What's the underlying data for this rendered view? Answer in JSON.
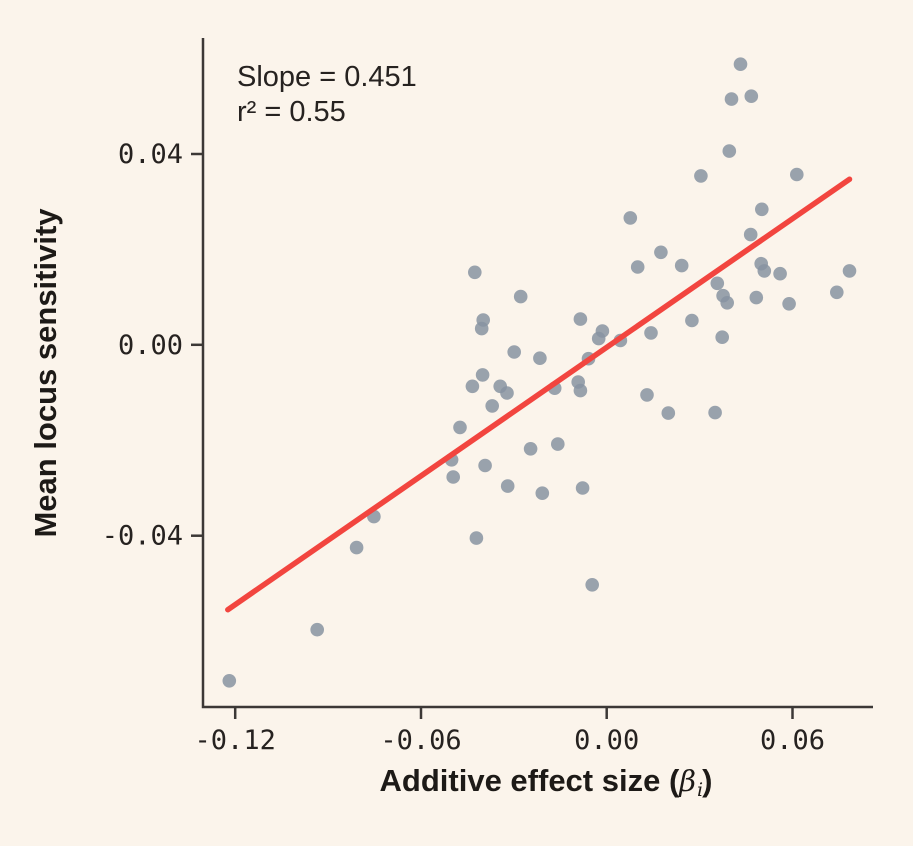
{
  "figure": {
    "annotation": {
      "line1": "Slope = 0.451",
      "line2": "r² = 0.55"
    },
    "xlabel": {
      "prefix": "Additive effect size (",
      "symbol": "β",
      "subscript": "i",
      "suffix": ")"
    },
    "ylabel": "Mean locus sensitivity"
  },
  "chart_data": {
    "type": "scatter",
    "title": "",
    "xlabel": "Additive effect size (β_i)",
    "ylabel": "Mean locus sensitivity",
    "annotations": [
      "Slope = 0.451",
      "r² = 0.55"
    ],
    "grid": false,
    "legend": false,
    "xlim": [
      -0.1304,
      0.086
    ],
    "ylim": [
      -0.0759,
      0.0643
    ],
    "x_ticks": {
      "values": [
        -0.12,
        -0.06,
        0.0,
        0.06
      ],
      "labels": [
        "-0.12",
        "-0.06",
        "0.00",
        "0.06"
      ]
    },
    "y_ticks": {
      "values": [
        0.04,
        0.0,
        -0.04
      ],
      "labels": [
        "0.04",
        "0.00",
        "-0.04"
      ]
    },
    "fit_line": {
      "slope": 0.451,
      "r_squared": 0.55,
      "x_start": -0.1224,
      "y_start": -0.0555,
      "x_end": 0.0784,
      "y_end": 0.0347
    },
    "points": [
      [
        0.0076,
        0.0266
      ],
      [
        0.0175,
        0.0194
      ],
      [
        0.0432,
        0.0588
      ],
      [
        0.0403,
        0.0515
      ],
      [
        0.0467,
        0.0521
      ],
      [
        0.0396,
        0.0406
      ],
      [
        0.0304,
        0.0354
      ],
      [
        0.0614,
        0.0357
      ],
      [
        0.0501,
        0.0284
      ],
      [
        0.0465,
        0.0231
      ],
      [
        0.0242,
        0.0166
      ],
      [
        0.0499,
        0.017
      ],
      [
        0.0509,
        0.0155
      ],
      [
        -0.0426,
        0.0152
      ],
      [
        -0.0278,
        0.0101
      ],
      [
        0.01,
        0.0163
      ],
      [
        -0.0399,
        0.0052
      ],
      [
        -0.0404,
        0.0034
      ],
      [
        -0.0085,
        0.0054
      ],
      [
        -0.0014,
        0.0029
      ],
      [
        -0.0026,
        0.0013
      ],
      [
        0.0044,
        0.0009
      ],
      [
        0.0143,
        0.0025
      ],
      [
        -0.0299,
        -0.0015
      ],
      [
        -0.0216,
        -0.0028
      ],
      [
        -0.0059,
        -0.0029
      ],
      [
        -0.0401,
        -0.0063
      ],
      [
        -0.0434,
        -0.0087
      ],
      [
        -0.0344,
        -0.0087
      ],
      [
        -0.0322,
        -0.0101
      ],
      [
        -0.0168,
        -0.0091
      ],
      [
        -0.0092,
        -0.0078
      ],
      [
        -0.0085,
        -0.0096
      ],
      [
        0.013,
        -0.0105
      ],
      [
        -0.037,
        -0.0128
      ],
      [
        -0.0474,
        -0.0173
      ],
      [
        -0.0246,
        -0.0218
      ],
      [
        -0.0158,
        -0.0208
      ],
      [
        -0.0393,
        -0.0253
      ],
      [
        -0.0501,
        -0.0241
      ],
      [
        -0.0496,
        -0.0277
      ],
      [
        0.056,
        0.0149
      ],
      [
        0.0784,
        0.0155
      ],
      [
        0.0357,
        0.0129
      ],
      [
        0.0376,
        0.0103
      ],
      [
        0.0389,
        0.0088
      ],
      [
        0.0483,
        0.0099
      ],
      [
        0.0589,
        0.0086
      ],
      [
        0.0743,
        0.011
      ],
      [
        0.0275,
        0.0051
      ],
      [
        0.0373,
        0.0016
      ],
      [
        0.0199,
        -0.0143
      ],
      [
        0.035,
        -0.0142
      ],
      [
        -0.0752,
        -0.036
      ],
      [
        -0.0808,
        -0.0425
      ],
      [
        -0.0935,
        -0.0597
      ],
      [
        -0.1219,
        -0.0704
      ],
      [
        -0.032,
        -0.0296
      ],
      [
        -0.0208,
        -0.0311
      ],
      [
        -0.0078,
        -0.03
      ],
      [
        -0.0421,
        -0.0405
      ],
      [
        -0.0047,
        -0.0503
      ]
    ],
    "colors": {
      "point": "#8793a1",
      "fit_line": "#f2453f",
      "axis": "#3c3836",
      "text": "#262220",
      "background": "#fbf4eb"
    }
  }
}
